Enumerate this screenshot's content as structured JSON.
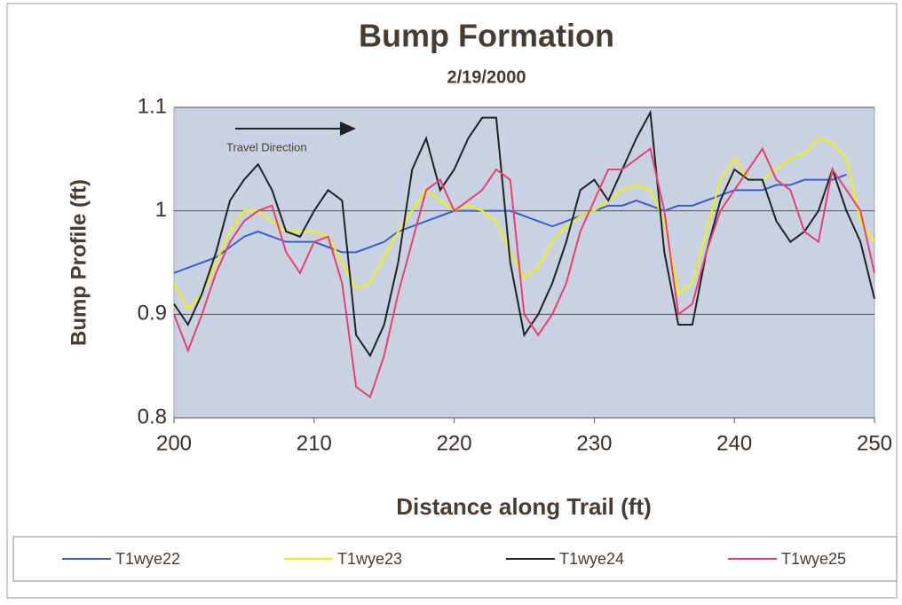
{
  "chart_data": {
    "type": "line",
    "title": "Bump Formation",
    "subtitle": "2/19/2000",
    "x_label": "Distance along Trail (ft)",
    "y_label": "Bump Profile (ft)",
    "annotation": "Travel Direction",
    "xlim": [
      200,
      250
    ],
    "xticks": [
      200,
      210,
      220,
      230,
      240,
      250
    ],
    "ylim": [
      0.8,
      1.1
    ],
    "yticks": [
      0.8,
      0.9,
      1,
      1.1
    ],
    "grid": true,
    "x": [
      200,
      201,
      202,
      203,
      204,
      205,
      206,
      207,
      208,
      209,
      210,
      211,
      212,
      213,
      214,
      215,
      216,
      217,
      218,
      219,
      220,
      221,
      222,
      223,
      224,
      225,
      226,
      227,
      228,
      229,
      230,
      231,
      232,
      233,
      234,
      235,
      236,
      237,
      238,
      239,
      240,
      241,
      242,
      243,
      244,
      245,
      246,
      247,
      248,
      249,
      250
    ],
    "series": [
      {
        "name": "T1wye22",
        "color": "#3a5fcd",
        "values": [
          0.94,
          0.945,
          0.95,
          0.955,
          0.965,
          0.975,
          0.98,
          0.975,
          0.97,
          0.97,
          0.97,
          0.965,
          0.96,
          0.96,
          0.965,
          0.97,
          0.98,
          0.985,
          0.99,
          0.995,
          1.0,
          1.0,
          1.0,
          1.0,
          1.0,
          0.995,
          0.99,
          0.985,
          0.99,
          0.995,
          1.0,
          1.005,
          1.005,
          1.01,
          1.005,
          1.0,
          1.005,
          1.005,
          1.01,
          1.015,
          1.02,
          1.02,
          1.02,
          1.025,
          1.025,
          1.03,
          1.03,
          1.03,
          1.035,
          null,
          null
        ]
      },
      {
        "name": "T1wye23",
        "color": "#f2f200",
        "values": [
          0.93,
          0.905,
          0.92,
          0.95,
          0.98,
          1.0,
          1.0,
          0.99,
          0.98,
          0.98,
          0.98,
          0.975,
          0.95,
          0.925,
          0.93,
          0.955,
          0.98,
          1.0,
          1.02,
          1.01,
          1.0,
          1.005,
          1.0,
          0.99,
          0.96,
          0.935,
          0.945,
          0.97,
          0.985,
          0.995,
          1.0,
          1.01,
          1.02,
          1.025,
          1.02,
          0.99,
          0.92,
          0.93,
          0.98,
          1.03,
          1.05,
          1.03,
          1.03,
          1.04,
          1.05,
          1.055,
          1.07,
          1.065,
          1.05,
          0.99,
          0.97
        ]
      },
      {
        "name": "T1wye24",
        "color": "#222222",
        "values": [
          0.91,
          0.89,
          0.92,
          0.96,
          1.01,
          1.03,
          1.045,
          1.02,
          0.98,
          0.975,
          1.0,
          1.02,
          1.01,
          0.88,
          0.86,
          0.89,
          0.95,
          1.04,
          1.07,
          1.02,
          1.04,
          1.07,
          1.09,
          1.09,
          0.95,
          0.88,
          0.9,
          0.93,
          0.97,
          1.02,
          1.03,
          1.01,
          1.04,
          1.07,
          1.095,
          0.96,
          0.89,
          0.89,
          0.96,
          1.01,
          1.04,
          1.03,
          1.03,
          0.99,
          0.97,
          0.98,
          1.0,
          1.04,
          1.0,
          0.97,
          0.915
        ]
      },
      {
        "name": "T1wye25",
        "color": "#e8406a",
        "values": [
          0.9,
          0.865,
          0.9,
          0.94,
          0.97,
          0.99,
          1.0,
          1.005,
          0.96,
          0.94,
          0.97,
          0.975,
          0.93,
          0.83,
          0.82,
          0.86,
          0.92,
          0.97,
          1.02,
          1.03,
          1.0,
          1.01,
          1.02,
          1.04,
          1.03,
          0.9,
          0.88,
          0.9,
          0.93,
          0.98,
          1.01,
          1.04,
          1.04,
          1.05,
          1.06,
          1.0,
          0.9,
          0.91,
          0.96,
          1.0,
          1.02,
          1.04,
          1.06,
          1.03,
          1.02,
          0.98,
          0.97,
          1.04,
          1.02,
          1.0,
          0.94
        ]
      }
    ]
  }
}
